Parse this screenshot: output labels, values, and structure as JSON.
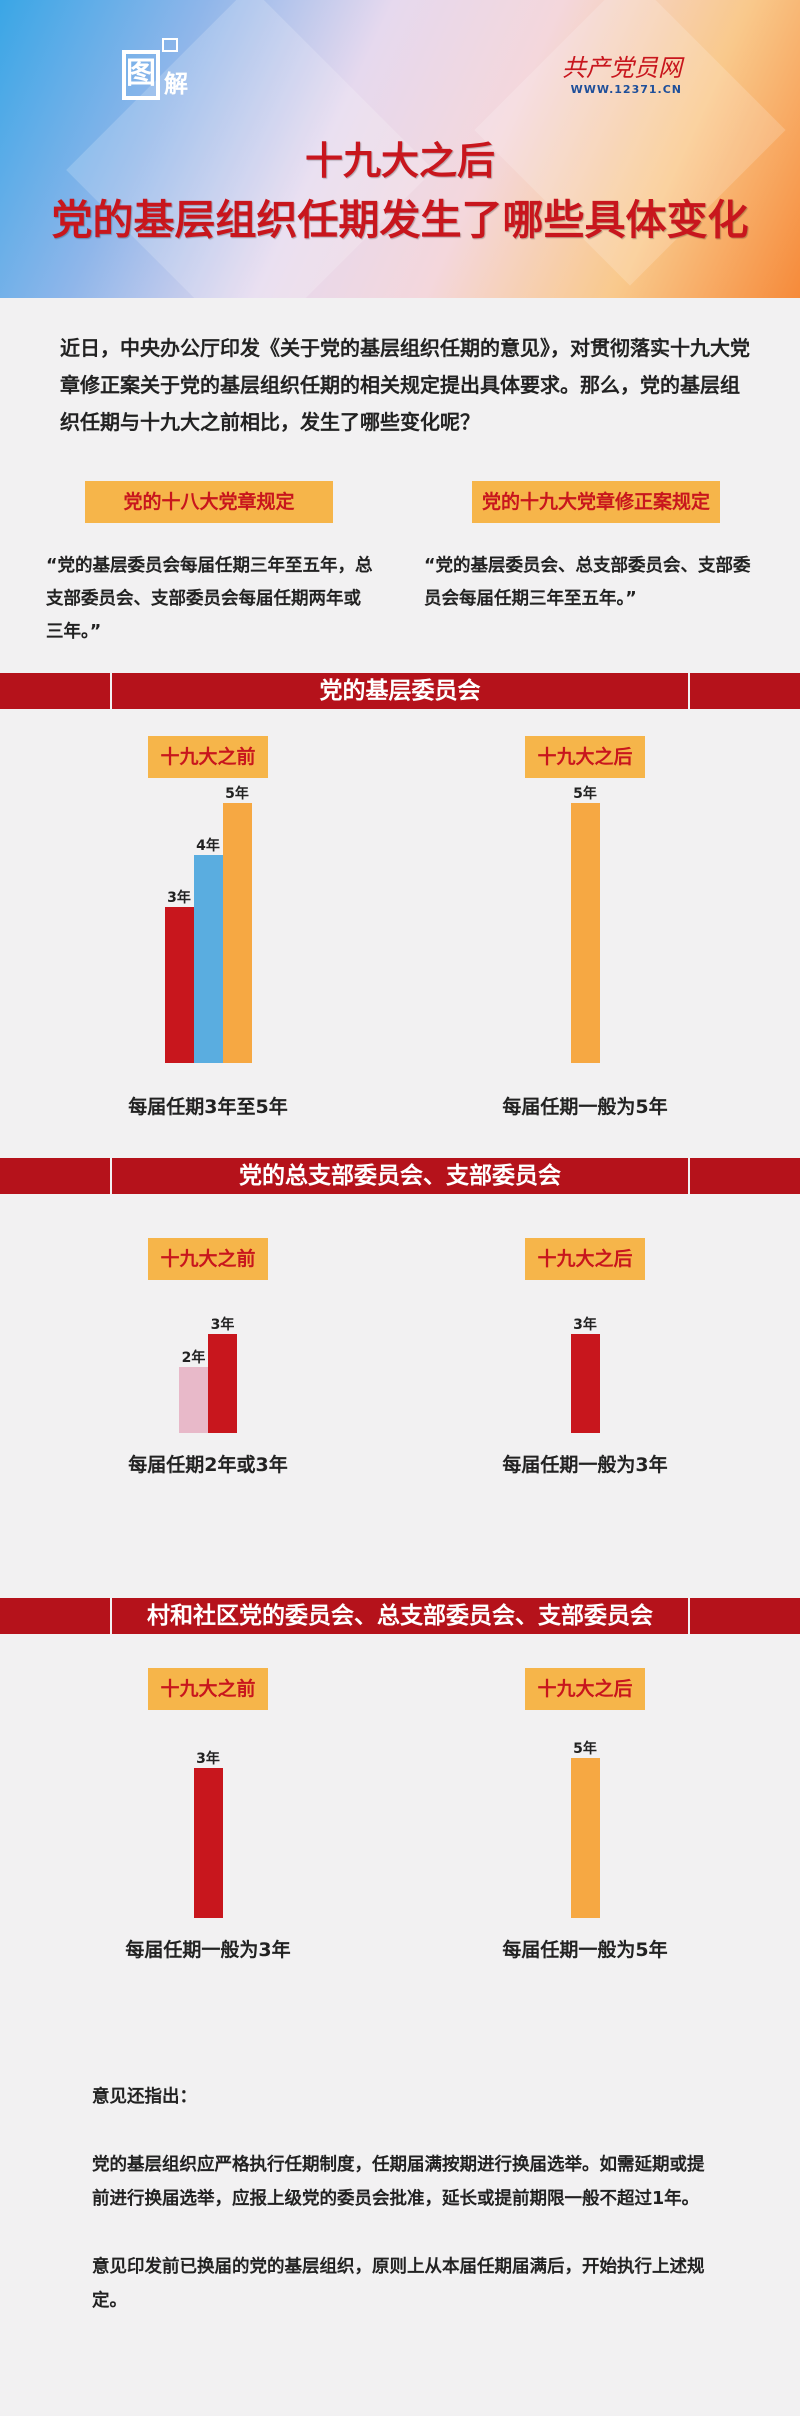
{
  "header": {
    "badge_text": "图解",
    "logo_name": "共产党员网",
    "logo_url": "WWW.12371.CN",
    "title_line1": "十九大之后",
    "title_line2": "党的基层组织任期发生了哪些具体变化"
  },
  "intro": "近日，中央办公厅印发《关于党的基层组织任期的意见》，对贯彻落实十九大党章修正案关于党的基层组织任期的相关规定提出具体要求。那么，党的基层组织任期与十九大之前相比，发生了哪些变化呢？",
  "comparison": {
    "left_label": "党的十八大党章规定",
    "right_label": "党的十九大党章修正案规定",
    "left_quote": "“党的基层委员会每届任期三年至五年，总支部委员会、支部委员会每届任期两年或三年。”",
    "right_quote": "“党的基层委员会、总支部委员会、支部委员会每届任期三年至五年。”"
  },
  "colors": {
    "red": "#c8161d",
    "blue": "#5aade0",
    "orange": "#f6a843",
    "pink": "#e8b9c9",
    "section_red": "#b5121b",
    "tag_yellow": "#f6b54a"
  },
  "chart_data": [
    {
      "type": "bar",
      "title": "党的基层委员会",
      "panels": [
        {
          "label": "十九大之前",
          "caption": "每届任期3年至5年",
          "bars": [
            {
              "value": 3,
              "label": "3年",
              "color": "#c8161d"
            },
            {
              "value": 4,
              "label": "4年",
              "color": "#5aade0"
            },
            {
              "value": 5,
              "label": "5年",
              "color": "#f6a843"
            }
          ]
        },
        {
          "label": "十九大之后",
          "caption": "每届任期一般为5年",
          "bars": [
            {
              "value": 5,
              "label": "5年",
              "color": "#f6a843"
            }
          ]
        }
      ]
    },
    {
      "type": "bar",
      "title": "党的总支部委员会、支部委员会",
      "panels": [
        {
          "label": "十九大之前",
          "caption": "每届任期2年或3年",
          "bars": [
            {
              "value": 2,
              "label": "2年",
              "color": "#e8b9c9"
            },
            {
              "value": 3,
              "label": "3年",
              "color": "#c8161d"
            }
          ]
        },
        {
          "label": "十九大之后",
          "caption": "每届任期一般为3年",
          "bars": [
            {
              "value": 3,
              "label": "3年",
              "color": "#c8161d"
            }
          ]
        }
      ]
    },
    {
      "type": "bar",
      "title": "村和社区党的委员会、总支部委员会、支部委员会",
      "panels": [
        {
          "label": "十九大之前",
          "caption": "每届任期一般为3年",
          "bars": [
            {
              "value": 3,
              "label": "3年",
              "color": "#c8161d"
            }
          ]
        },
        {
          "label": "十九大之后",
          "caption": "每届任期一般为5年",
          "bars": [
            {
              "value": 5,
              "label": "5年",
              "color": "#f6a843"
            }
          ]
        }
      ]
    }
  ],
  "footer": {
    "heading": "意见还指出：",
    "para1": "党的基层组织应严格执行任期制度，任期届满按期进行换届选举。如需延期或提前进行换届选举，应报上级党的委员会批准，延长或提前期限一般不超过1年。",
    "para2": "意见印发前已换届的党的基层组织，原则上从本届任期届满后，开始执行上述规定。"
  }
}
